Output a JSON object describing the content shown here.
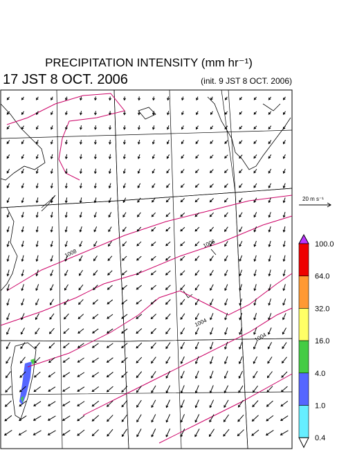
{
  "header": {
    "title": "PRECIPITATION INTENSITY (mm hr⁻¹)",
    "valid_time": "17 JST 8 OCT. 2006",
    "init_time": "(init. 9 JST 8 OCT. 2006)"
  },
  "wind_scale": {
    "label": "20 m s⁻¹"
  },
  "isobars": {
    "labels": [
      "1008",
      "1006",
      "1004",
      "1004"
    ]
  },
  "colorbar": {
    "labels": [
      "100.0",
      "64.0",
      "32.0",
      "16.0",
      "4.0",
      "1.0",
      "0.4"
    ],
    "colors": [
      "#ee0000",
      "#ff9933",
      "#ffff66",
      "#44cc44",
      "#5566ff",
      "#66eeff"
    ],
    "over_color": "#bb33ff",
    "under_color": "#ffffff"
  }
}
